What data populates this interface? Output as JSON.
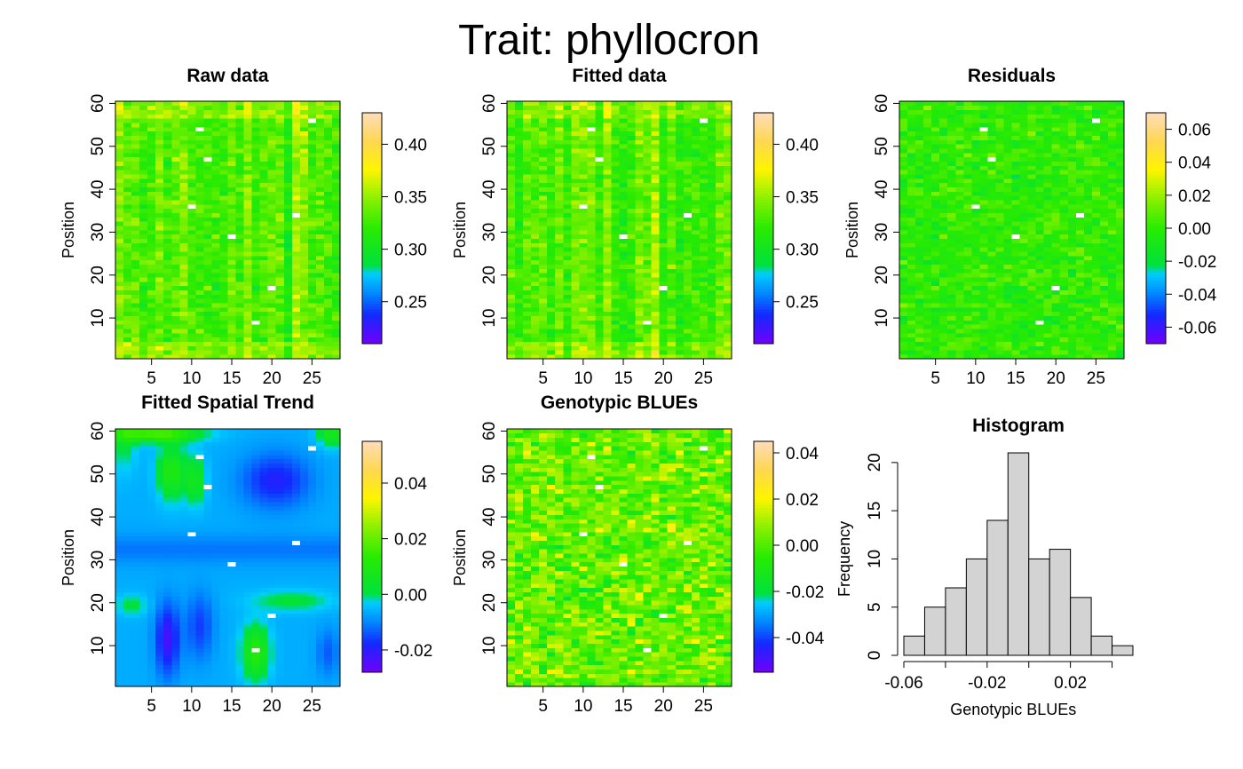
{
  "figure": {
    "title": "Trait: phyllocron"
  },
  "chart_data": [
    {
      "type": "heatmap",
      "id": "raw",
      "title": "Raw data",
      "xlabel": "",
      "ylabel": "Position",
      "x_ticks": [
        "5",
        "10",
        "15",
        "20",
        "25"
      ],
      "y_ticks": [
        "10",
        "20",
        "30",
        "40",
        "50",
        "60"
      ],
      "cols": 28,
      "rows": 60,
      "legend_ticks": [
        "0.25",
        "0.30",
        "0.35",
        "0.40"
      ],
      "legend_range": [
        0.21,
        0.43
      ],
      "value_range": [
        0.21,
        0.43
      ],
      "missing_cells": [
        [
          10,
          36
        ],
        [
          15,
          29
        ],
        [
          20,
          17
        ],
        [
          25,
          56
        ],
        [
          18,
          9
        ],
        [
          12,
          47
        ],
        [
          11,
          54
        ],
        [
          23,
          34
        ]
      ]
    },
    {
      "type": "heatmap",
      "id": "fitted",
      "title": "Fitted data",
      "xlabel": "",
      "ylabel": "Position",
      "x_ticks": [
        "5",
        "10",
        "15",
        "20",
        "25"
      ],
      "y_ticks": [
        "10",
        "20",
        "30",
        "40",
        "50",
        "60"
      ],
      "cols": 28,
      "rows": 60,
      "legend_ticks": [
        "0.25",
        "0.30",
        "0.35",
        "0.40"
      ],
      "legend_range": [
        0.21,
        0.43
      ],
      "value_range": [
        0.21,
        0.43
      ],
      "missing_cells": [
        [
          10,
          36
        ],
        [
          15,
          29
        ],
        [
          20,
          17
        ],
        [
          25,
          56
        ],
        [
          18,
          9
        ],
        [
          12,
          47
        ],
        [
          11,
          54
        ],
        [
          23,
          34
        ]
      ]
    },
    {
      "type": "heatmap",
      "id": "residuals",
      "title": "Residuals",
      "xlabel": "",
      "ylabel": "Position",
      "x_ticks": [
        "5",
        "10",
        "15",
        "20",
        "25"
      ],
      "y_ticks": [
        "10",
        "20",
        "30",
        "40",
        "50",
        "60"
      ],
      "cols": 28,
      "rows": 60,
      "legend_ticks": [
        "-0.06",
        "-0.04",
        "-0.02",
        "0.00",
        "0.02",
        "0.04",
        "0.06"
      ],
      "legend_range": [
        -0.07,
        0.07
      ],
      "value_range": [
        -0.07,
        0.07
      ],
      "missing_cells": [
        [
          10,
          36
        ],
        [
          15,
          29
        ],
        [
          20,
          17
        ],
        [
          25,
          56
        ],
        [
          18,
          9
        ],
        [
          12,
          47
        ],
        [
          11,
          54
        ],
        [
          23,
          34
        ]
      ]
    },
    {
      "type": "heatmap",
      "id": "spatial",
      "title": "Fitted Spatial Trend",
      "xlabel": "",
      "ylabel": "Position",
      "x_ticks": [
        "5",
        "10",
        "15",
        "20",
        "25"
      ],
      "y_ticks": [
        "10",
        "20",
        "30",
        "40",
        "50",
        "60"
      ],
      "cols": 28,
      "rows": 60,
      "legend_ticks": [
        "-0.02",
        "0.00",
        "0.02",
        "0.04"
      ],
      "legend_range": [
        -0.028,
        0.055
      ],
      "value_range": [
        -0.028,
        0.055
      ],
      "missing_cells": [
        [
          10,
          36
        ],
        [
          15,
          29
        ],
        [
          20,
          17
        ],
        [
          25,
          56
        ],
        [
          18,
          9
        ],
        [
          12,
          47
        ],
        [
          11,
          54
        ],
        [
          23,
          34
        ]
      ]
    },
    {
      "type": "heatmap",
      "id": "blues",
      "title": "Genotypic BLUEs",
      "xlabel": "",
      "ylabel": "Position",
      "x_ticks": [
        "5",
        "10",
        "15",
        "20",
        "25"
      ],
      "y_ticks": [
        "10",
        "20",
        "30",
        "40",
        "50",
        "60"
      ],
      "cols": 28,
      "rows": 60,
      "legend_ticks": [
        "-0.04",
        "-0.02",
        "0.00",
        "0.02",
        "0.04"
      ],
      "legend_range": [
        -0.055,
        0.045
      ],
      "value_range": [
        -0.055,
        0.045
      ],
      "missing_cells": [
        [
          10,
          36
        ],
        [
          15,
          29
        ],
        [
          20,
          17
        ],
        [
          25,
          56
        ],
        [
          18,
          9
        ],
        [
          12,
          47
        ],
        [
          11,
          54
        ],
        [
          23,
          34
        ]
      ]
    },
    {
      "type": "bar",
      "id": "histogram",
      "title": "Histogram",
      "xlabel": "Genotypic BLUEs",
      "ylabel": "Frequency",
      "bin_edges": [
        -0.06,
        -0.05,
        -0.04,
        -0.03,
        -0.02,
        -0.01,
        0.0,
        0.01,
        0.02,
        0.03,
        0.04,
        0.05
      ],
      "values": [
        2,
        5,
        7,
        10,
        14,
        21,
        10,
        11,
        6,
        2,
        1
      ],
      "x_ticks": [
        "-0.06",
        "-0.02",
        "0.02"
      ],
      "y_ticks": [
        "0",
        "5",
        "10",
        "15",
        "20"
      ],
      "xlim": [
        -0.06,
        0.05
      ],
      "ylim": [
        0,
        21
      ]
    }
  ]
}
